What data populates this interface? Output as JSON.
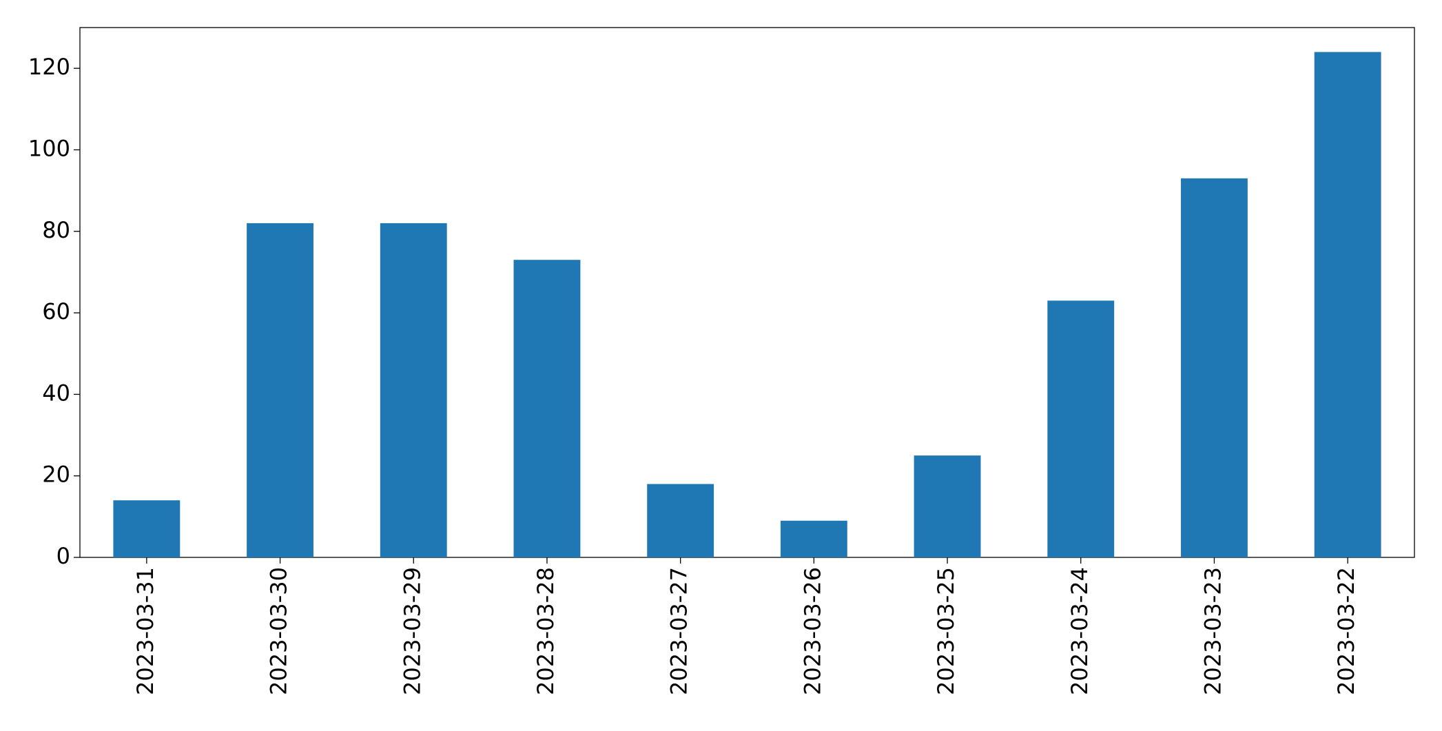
{
  "chart_data": {
    "type": "bar",
    "categories": [
      "2023-03-31",
      "2023-03-30",
      "2023-03-29",
      "2023-03-28",
      "2023-03-27",
      "2023-03-26",
      "2023-03-25",
      "2023-03-24",
      "2023-03-23",
      "2023-03-22"
    ],
    "values": [
      14,
      82,
      82,
      73,
      18,
      9,
      25,
      63,
      93,
      124
    ],
    "color": "#1f77b4",
    "ylim": [
      0,
      130
    ],
    "yticks": [
      0,
      20,
      40,
      60,
      80,
      100,
      120
    ],
    "grid": false
  }
}
